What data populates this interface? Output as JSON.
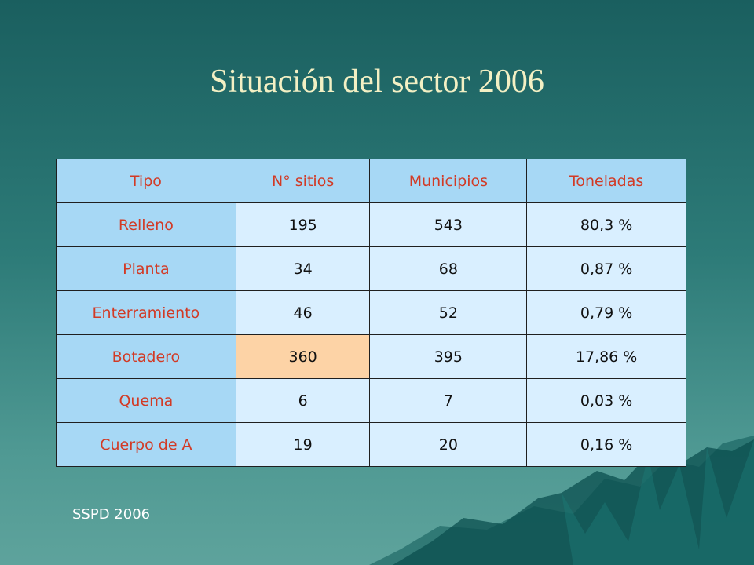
{
  "slide": {
    "title": "Situación del sector 2006",
    "source": "SSPD 2006"
  },
  "table": {
    "headers": [
      "Tipo",
      "N° sitios",
      "Municipios",
      "Toneladas"
    ],
    "rows": [
      [
        "Relleno",
        "195",
        "543",
        "80,3 %"
      ],
      [
        "Planta",
        "34",
        "68",
        "0,87 %"
      ],
      [
        "Enterramiento",
        "46",
        "52",
        "0,79 %"
      ],
      [
        "Botadero",
        "360",
        "395",
        "17,86 %"
      ],
      [
        "Quema",
        "6",
        "7",
        "0,03 %"
      ],
      [
        "Cuerpo de A",
        "19",
        "20",
        "0,16 %"
      ]
    ],
    "highlighted_cell": "360"
  },
  "colors": {
    "header_bg": "#a7d8f5",
    "header_text": "#d23a25",
    "cell_bg": "#d9efff",
    "highlight_bg": "#fdd3a6",
    "title_text": "#f3f0c4"
  }
}
